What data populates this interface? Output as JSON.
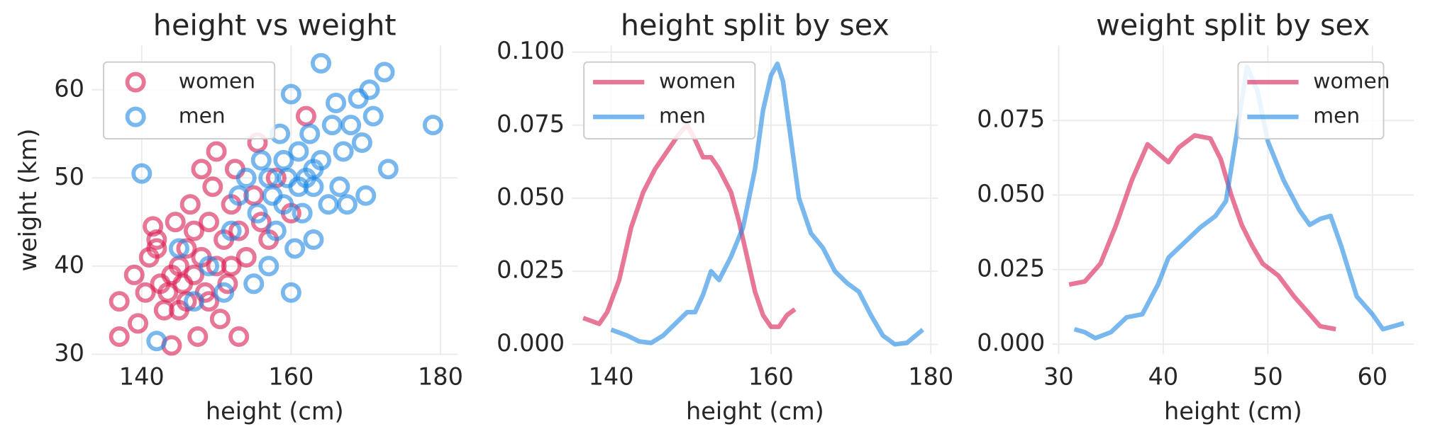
{
  "chart_data": [
    {
      "type": "scatter",
      "title": "height vs weight",
      "x_label": "height (cm)",
      "y_label": "weight (km)",
      "xlim": [
        133.3,
        182.3
      ],
      "ylim": [
        30,
        65
      ],
      "xticks": [
        140,
        160,
        180
      ],
      "yticks": [
        30,
        40,
        50,
        60
      ],
      "grid": true,
      "legend": "upper left",
      "series": [
        {
          "name": "women",
          "color": "#d81b50",
          "x": [
            137,
            137,
            139,
            139.5,
            140.5,
            141,
            141.5,
            142,
            142.5,
            143,
            143.5,
            144,
            144,
            144.5,
            145,
            145.5,
            146,
            146,
            146.5,
            147,
            147,
            147.5,
            148,
            148,
            148.5,
            149,
            149.5,
            150,
            150,
            150.5,
            151,
            151.5,
            152,
            152.5,
            153,
            153,
            154,
            155,
            155.5,
            156,
            157,
            158,
            160,
            162,
            142,
            145,
            149,
            152
          ],
          "values": [
            36,
            32,
            39,
            33.5,
            37,
            41,
            44.5,
            42,
            38,
            35,
            37,
            31,
            39,
            45,
            40,
            38,
            36,
            42,
            47,
            39,
            44,
            32,
            41,
            51,
            37,
            45,
            49,
            53,
            40,
            34,
            43,
            38,
            47,
            51,
            44,
            32,
            41,
            48,
            54,
            45,
            43,
            50,
            46,
            57,
            43,
            35,
            36,
            40
          ]
        },
        {
          "name": "men",
          "color": "#1e88e5",
          "x": [
            140,
            142,
            145,
            147,
            149,
            151,
            152,
            153,
            154,
            155,
            155.5,
            156,
            157,
            157.5,
            158,
            158.5,
            159,
            159.5,
            160,
            160,
            160.5,
            161,
            161.5,
            162,
            162.5,
            163,
            163,
            164,
            164,
            165,
            165.5,
            166,
            166.5,
            167,
            167.5,
            168,
            169,
            169.5,
            170,
            170.5,
            171,
            172.5,
            173,
            179,
            157,
            159,
            161,
            163
          ],
          "values": [
            50.5,
            31.5,
            42,
            36,
            40,
            37,
            44,
            48,
            50,
            38,
            46,
            52,
            40,
            48,
            44,
            55,
            47,
            50,
            37,
            59.5,
            42,
            53,
            46,
            50,
            55,
            43,
            49,
            63,
            52,
            47,
            56,
            58.5,
            49,
            53,
            47,
            56,
            59,
            54,
            48,
            60,
            57,
            62,
            51,
            56,
            50,
            52,
            49,
            51
          ]
        }
      ]
    },
    {
      "type": "line",
      "title": "height split by sex",
      "x_label": "height (cm)",
      "xlim": [
        135.1,
        180.9
      ],
      "ylim": [
        -0.0034,
        0.1022
      ],
      "xticks": [
        140,
        160,
        180
      ],
      "yticks": [
        {
          "value": 0,
          "label": "0.000"
        },
        {
          "value": 0.025,
          "label": "0.025"
        },
        {
          "value": 0.05,
          "label": "0.050"
        },
        {
          "value": 0.075,
          "label": "0.075"
        },
        {
          "value": 0.1,
          "label": "0.100"
        }
      ],
      "grid": true,
      "legend": "upper left",
      "series": [
        {
          "name": "women",
          "color": "#d81b50",
          "x": [
            136.5,
            137.5,
            138.5,
            139.5,
            141,
            142.5,
            144,
            145.5,
            147,
            148.5,
            149.5,
            150.5,
            151.5,
            152.5,
            153.5,
            155,
            156,
            157,
            158,
            159,
            160,
            161,
            162,
            163
          ],
          "values": [
            0.009,
            0.008,
            0.007,
            0.011,
            0.022,
            0.04,
            0.052,
            0.06,
            0.066,
            0.072,
            0.075,
            0.07,
            0.064,
            0.064,
            0.06,
            0.052,
            0.042,
            0.03,
            0.018,
            0.01,
            0.006,
            0.006,
            0.01,
            0.012
          ]
        },
        {
          "name": "men",
          "color": "#1e88e5",
          "x": [
            140,
            142,
            143.5,
            145,
            146.5,
            148,
            149.5,
            150.5,
            151.5,
            152.5,
            153.5,
            155,
            156.5,
            158,
            159,
            160,
            160.8,
            161.5,
            162.5,
            163.5,
            165,
            166.5,
            168,
            169.5,
            171,
            172.5,
            174,
            175.5,
            177,
            179
          ],
          "values": [
            0.005,
            0.003,
            0.001,
            0.0005,
            0.003,
            0.007,
            0.011,
            0.011,
            0.017,
            0.025,
            0.022,
            0.03,
            0.04,
            0.06,
            0.08,
            0.092,
            0.096,
            0.09,
            0.07,
            0.05,
            0.038,
            0.033,
            0.025,
            0.021,
            0.018,
            0.01,
            0.003,
            0,
            0.0005,
            0.005
          ]
        }
      ]
    },
    {
      "type": "line",
      "title": "weight split by sex",
      "x_label": "height (cm)",
      "xlim": [
        29.4,
        63.95
      ],
      "ylim": [
        -0.0034,
        0.1001
      ],
      "xticks": [
        30,
        40,
        50,
        60
      ],
      "yticks": [
        {
          "value": 0,
          "label": "0.000"
        },
        {
          "value": 0.025,
          "label": "0.025"
        },
        {
          "value": 0.05,
          "label": "0.050"
        },
        {
          "value": 0.075,
          "label": "0.075"
        }
      ],
      "grid": true,
      "legend": "upper right",
      "series": [
        {
          "name": "women",
          "color": "#d81b50",
          "x": [
            31,
            32.5,
            34,
            35.5,
            37,
            38.5,
            39.5,
            40.5,
            41.5,
            43,
            44.5,
            45.5,
            46.5,
            47.5,
            48.5,
            49.5,
            51,
            52.5,
            54,
            55,
            56.5
          ],
          "values": [
            0.02,
            0.021,
            0.027,
            0.04,
            0.055,
            0.067,
            0.064,
            0.061,
            0.066,
            0.07,
            0.069,
            0.062,
            0.05,
            0.04,
            0.033,
            0.027,
            0.023,
            0.016,
            0.01,
            0.006,
            0.005
          ]
        },
        {
          "name": "men",
          "color": "#1e88e5",
          "x": [
            31.5,
            32.5,
            33.5,
            35,
            36.5,
            38,
            39.5,
            40.5,
            42,
            43.5,
            45,
            46,
            47,
            48,
            49,
            50,
            51.5,
            53,
            54,
            55,
            56,
            57,
            58.5,
            60,
            61,
            62,
            63
          ],
          "values": [
            0.005,
            0.004,
            0.002,
            0.004,
            0.009,
            0.01,
            0.02,
            0.029,
            0.034,
            0.039,
            0.043,
            0.048,
            0.07,
            0.093,
            0.085,
            0.068,
            0.055,
            0.045,
            0.04,
            0.042,
            0.043,
            0.033,
            0.016,
            0.01,
            0.005,
            0.006,
            0.007
          ]
        }
      ]
    }
  ]
}
